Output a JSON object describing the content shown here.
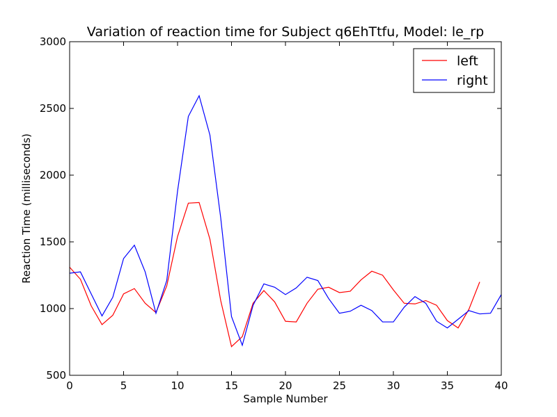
{
  "chart_data": {
    "type": "line",
    "title": "Variation of reaction time for Subject q6EhTtfu, Model: le_rp",
    "xlabel": "Sample Number",
    "ylabel": "Reaction Time (milliseconds)",
    "xlim": [
      0,
      40
    ],
    "ylim": [
      500,
      3000
    ],
    "xticks": [
      0,
      5,
      10,
      15,
      20,
      25,
      30,
      35,
      40
    ],
    "yticks": [
      500,
      1000,
      1500,
      2000,
      2500,
      3000
    ],
    "grid": false,
    "legend_position": "top-right",
    "series": [
      {
        "name": "left",
        "color": "#ff0000",
        "x": [
          0,
          1,
          2,
          3,
          4,
          5,
          6,
          7,
          8,
          9,
          10,
          11,
          12,
          13,
          14,
          15,
          16,
          17,
          18,
          19,
          20,
          21,
          22,
          23,
          24,
          25,
          26,
          27,
          28,
          29,
          30,
          31,
          32,
          33,
          34,
          35,
          36,
          37,
          38
        ],
        "values": [
          1310,
          1220,
          1020,
          880,
          950,
          1110,
          1150,
          1040,
          970,
          1170,
          1540,
          1790,
          1795,
          1520,
          1060,
          715,
          790,
          1040,
          1135,
          1050,
          905,
          900,
          1040,
          1145,
          1160,
          1120,
          1130,
          1215,
          1280,
          1250,
          1140,
          1040,
          1035,
          1060,
          1025,
          910,
          855,
          995,
          1200
        ]
      },
      {
        "name": "right",
        "color": "#0000ff",
        "x": [
          0,
          1,
          2,
          3,
          4,
          5,
          6,
          7,
          8,
          9,
          10,
          11,
          12,
          13,
          14,
          15,
          16,
          17,
          18,
          19,
          20,
          21,
          22,
          23,
          24,
          25,
          26,
          27,
          28,
          29,
          30,
          31,
          32,
          33,
          34,
          35,
          36,
          37,
          38,
          39,
          40
        ],
        "values": [
          1265,
          1275,
          1110,
          945,
          1085,
          1375,
          1475,
          1275,
          965,
          1210,
          1880,
          2440,
          2595,
          2300,
          1680,
          940,
          725,
          1025,
          1185,
          1160,
          1105,
          1155,
          1235,
          1210,
          1075,
          965,
          980,
          1025,
          985,
          900,
          900,
          1010,
          1090,
          1040,
          905,
          855,
          920,
          985,
          960,
          965,
          1105
        ]
      }
    ]
  }
}
